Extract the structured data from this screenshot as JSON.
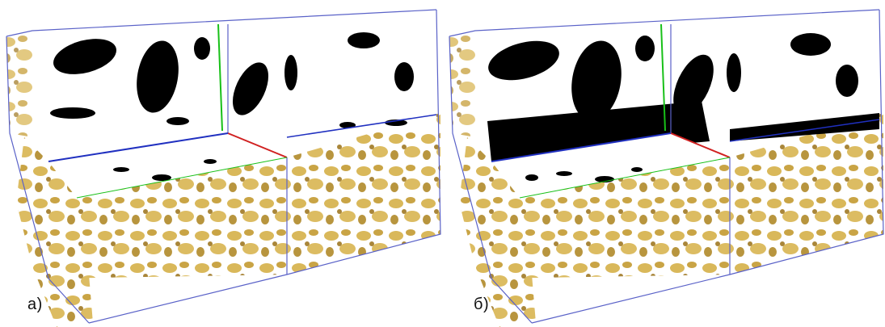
{
  "figure": {
    "panels": [
      {
        "id": "a",
        "caption": "a)"
      },
      {
        "id": "b",
        "caption": "б)"
      }
    ],
    "colors": {
      "sample_material": "#d9b85a",
      "sample_shadow": "#a9863a",
      "binary_pore": "#000000",
      "binary_solid": "#ffffff",
      "axis_x": "#d02020",
      "axis_y": "#18c018",
      "axis_z": "#2030c0",
      "box_edge": "#5a62c8"
    }
  }
}
